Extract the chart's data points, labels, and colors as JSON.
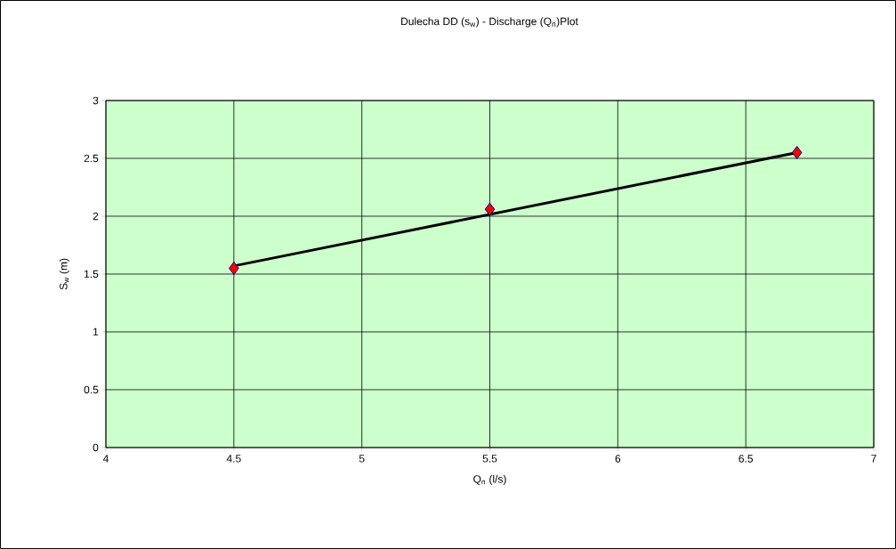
{
  "chart_data": {
    "type": "scatter",
    "title": "Dulecha DD (s$_{w}$) - Discharge (Q$_{n}$)Plot",
    "xlabel": "Q$_{n}$ (l/s)",
    "ylabel": "S$_{w}$ (m)",
    "series": [
      {
        "color": "#ff0000",
        "marker": "diamond",
        "x": [
          4.5,
          5.5,
          6.7
        ],
        "values": [
          1.55,
          2.06,
          2.55
        ]
      },
      {
        "type": "line",
        "color": "#000000",
        "marker": "none",
        "line_style": "solid",
        "x": [
          4.5,
          6.7
        ],
        "values": [
          1.57,
          2.55
        ]
      }
    ],
    "xlim": [
      4,
      7
    ],
    "xticks": [
      4,
      4.5,
      5,
      5.5,
      6,
      6.5,
      7
    ],
    "ylim": [
      0,
      3
    ],
    "yticks": [
      0,
      0.5,
      1,
      1.5,
      2,
      2.5,
      3
    ],
    "grid": true
  }
}
